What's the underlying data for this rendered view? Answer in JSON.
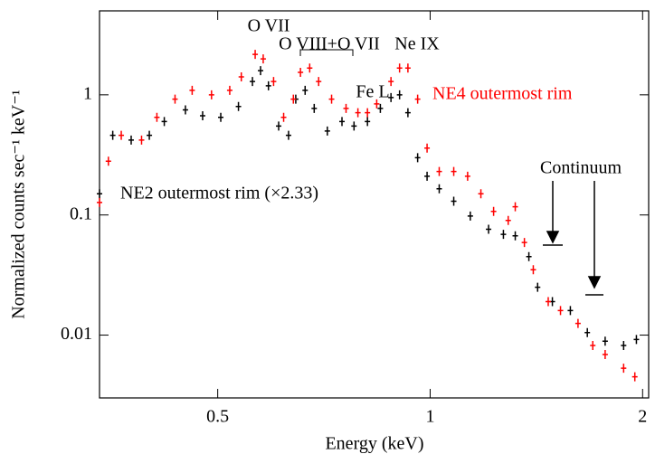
{
  "chart_data": {
    "type": "scatter",
    "xlabel": "Energy (keV)",
    "ylabel": "Normalized counts sec⁻¹ keV⁻¹",
    "xscale": "log",
    "yscale": "log",
    "xlim": [
      0.34,
      2.04
    ],
    "ylim": [
      0.003,
      5
    ],
    "xticks": [
      0.5,
      1,
      2
    ],
    "yticks": [
      0.01,
      0.1,
      1
    ],
    "annotations": [
      "O VII",
      "O VIII+O VII",
      "Fe L",
      "Ne IX",
      "Continuum"
    ],
    "series": [
      {
        "name": "NE2 outermost rim (×2.33)",
        "color": "#000000",
        "x": [
          0.34,
          0.355,
          0.377,
          0.4,
          0.42,
          0.45,
          0.476,
          0.505,
          0.535,
          0.56,
          0.575,
          0.59,
          0.61,
          0.63,
          0.645,
          0.665,
          0.685,
          0.715,
          0.75,
          0.78,
          0.815,
          0.85,
          0.88,
          0.905,
          0.93,
          0.96,
          0.99,
          1.03,
          1.08,
          1.14,
          1.21,
          1.27,
          1.32,
          1.38,
          1.42,
          1.49,
          1.58,
          1.67,
          1.77,
          1.88,
          1.96
        ],
        "values": [
          0.15,
          0.46,
          0.42,
          0.46,
          0.6,
          0.75,
          0.67,
          0.65,
          0.8,
          1.29,
          1.59,
          1.19,
          0.55,
          0.46,
          0.92,
          1.09,
          0.77,
          0.5,
          0.6,
          0.55,
          0.6,
          0.77,
          0.95,
          1.0,
          0.71,
          0.3,
          0.21,
          0.165,
          0.13,
          0.098,
          0.076,
          0.069,
          0.067,
          0.045,
          0.025,
          0.019,
          0.016,
          0.0105,
          0.0089,
          0.0082,
          0.0092
        ]
      },
      {
        "name": "NE4 outermost rim",
        "color": "#ff0000",
        "x": [
          0.34,
          0.35,
          0.365,
          0.39,
          0.41,
          0.435,
          0.46,
          0.49,
          0.52,
          0.54,
          0.565,
          0.58,
          0.6,
          0.62,
          0.64,
          0.655,
          0.675,
          0.695,
          0.725,
          0.76,
          0.79,
          0.815,
          0.84,
          0.88,
          0.905,
          0.93,
          0.96,
          0.99,
          1.03,
          1.08,
          1.13,
          1.18,
          1.23,
          1.29,
          1.32,
          1.36,
          1.4,
          1.47,
          1.53,
          1.62,
          1.7,
          1.77,
          1.88,
          1.95
        ],
        "values": [
          0.127,
          0.28,
          0.46,
          0.42,
          0.65,
          0.92,
          1.09,
          1.0,
          1.09,
          1.41,
          2.17,
          1.99,
          1.29,
          0.65,
          0.92,
          1.54,
          1.67,
          1.29,
          0.92,
          0.77,
          0.71,
          0.71,
          0.84,
          1.29,
          1.67,
          1.67,
          0.92,
          0.36,
          0.23,
          0.23,
          0.21,
          0.15,
          0.107,
          0.09,
          0.117,
          0.059,
          0.035,
          0.019,
          0.016,
          0.0125,
          0.0082,
          0.0069,
          0.0053,
          0.0045
        ]
      }
    ]
  }
}
